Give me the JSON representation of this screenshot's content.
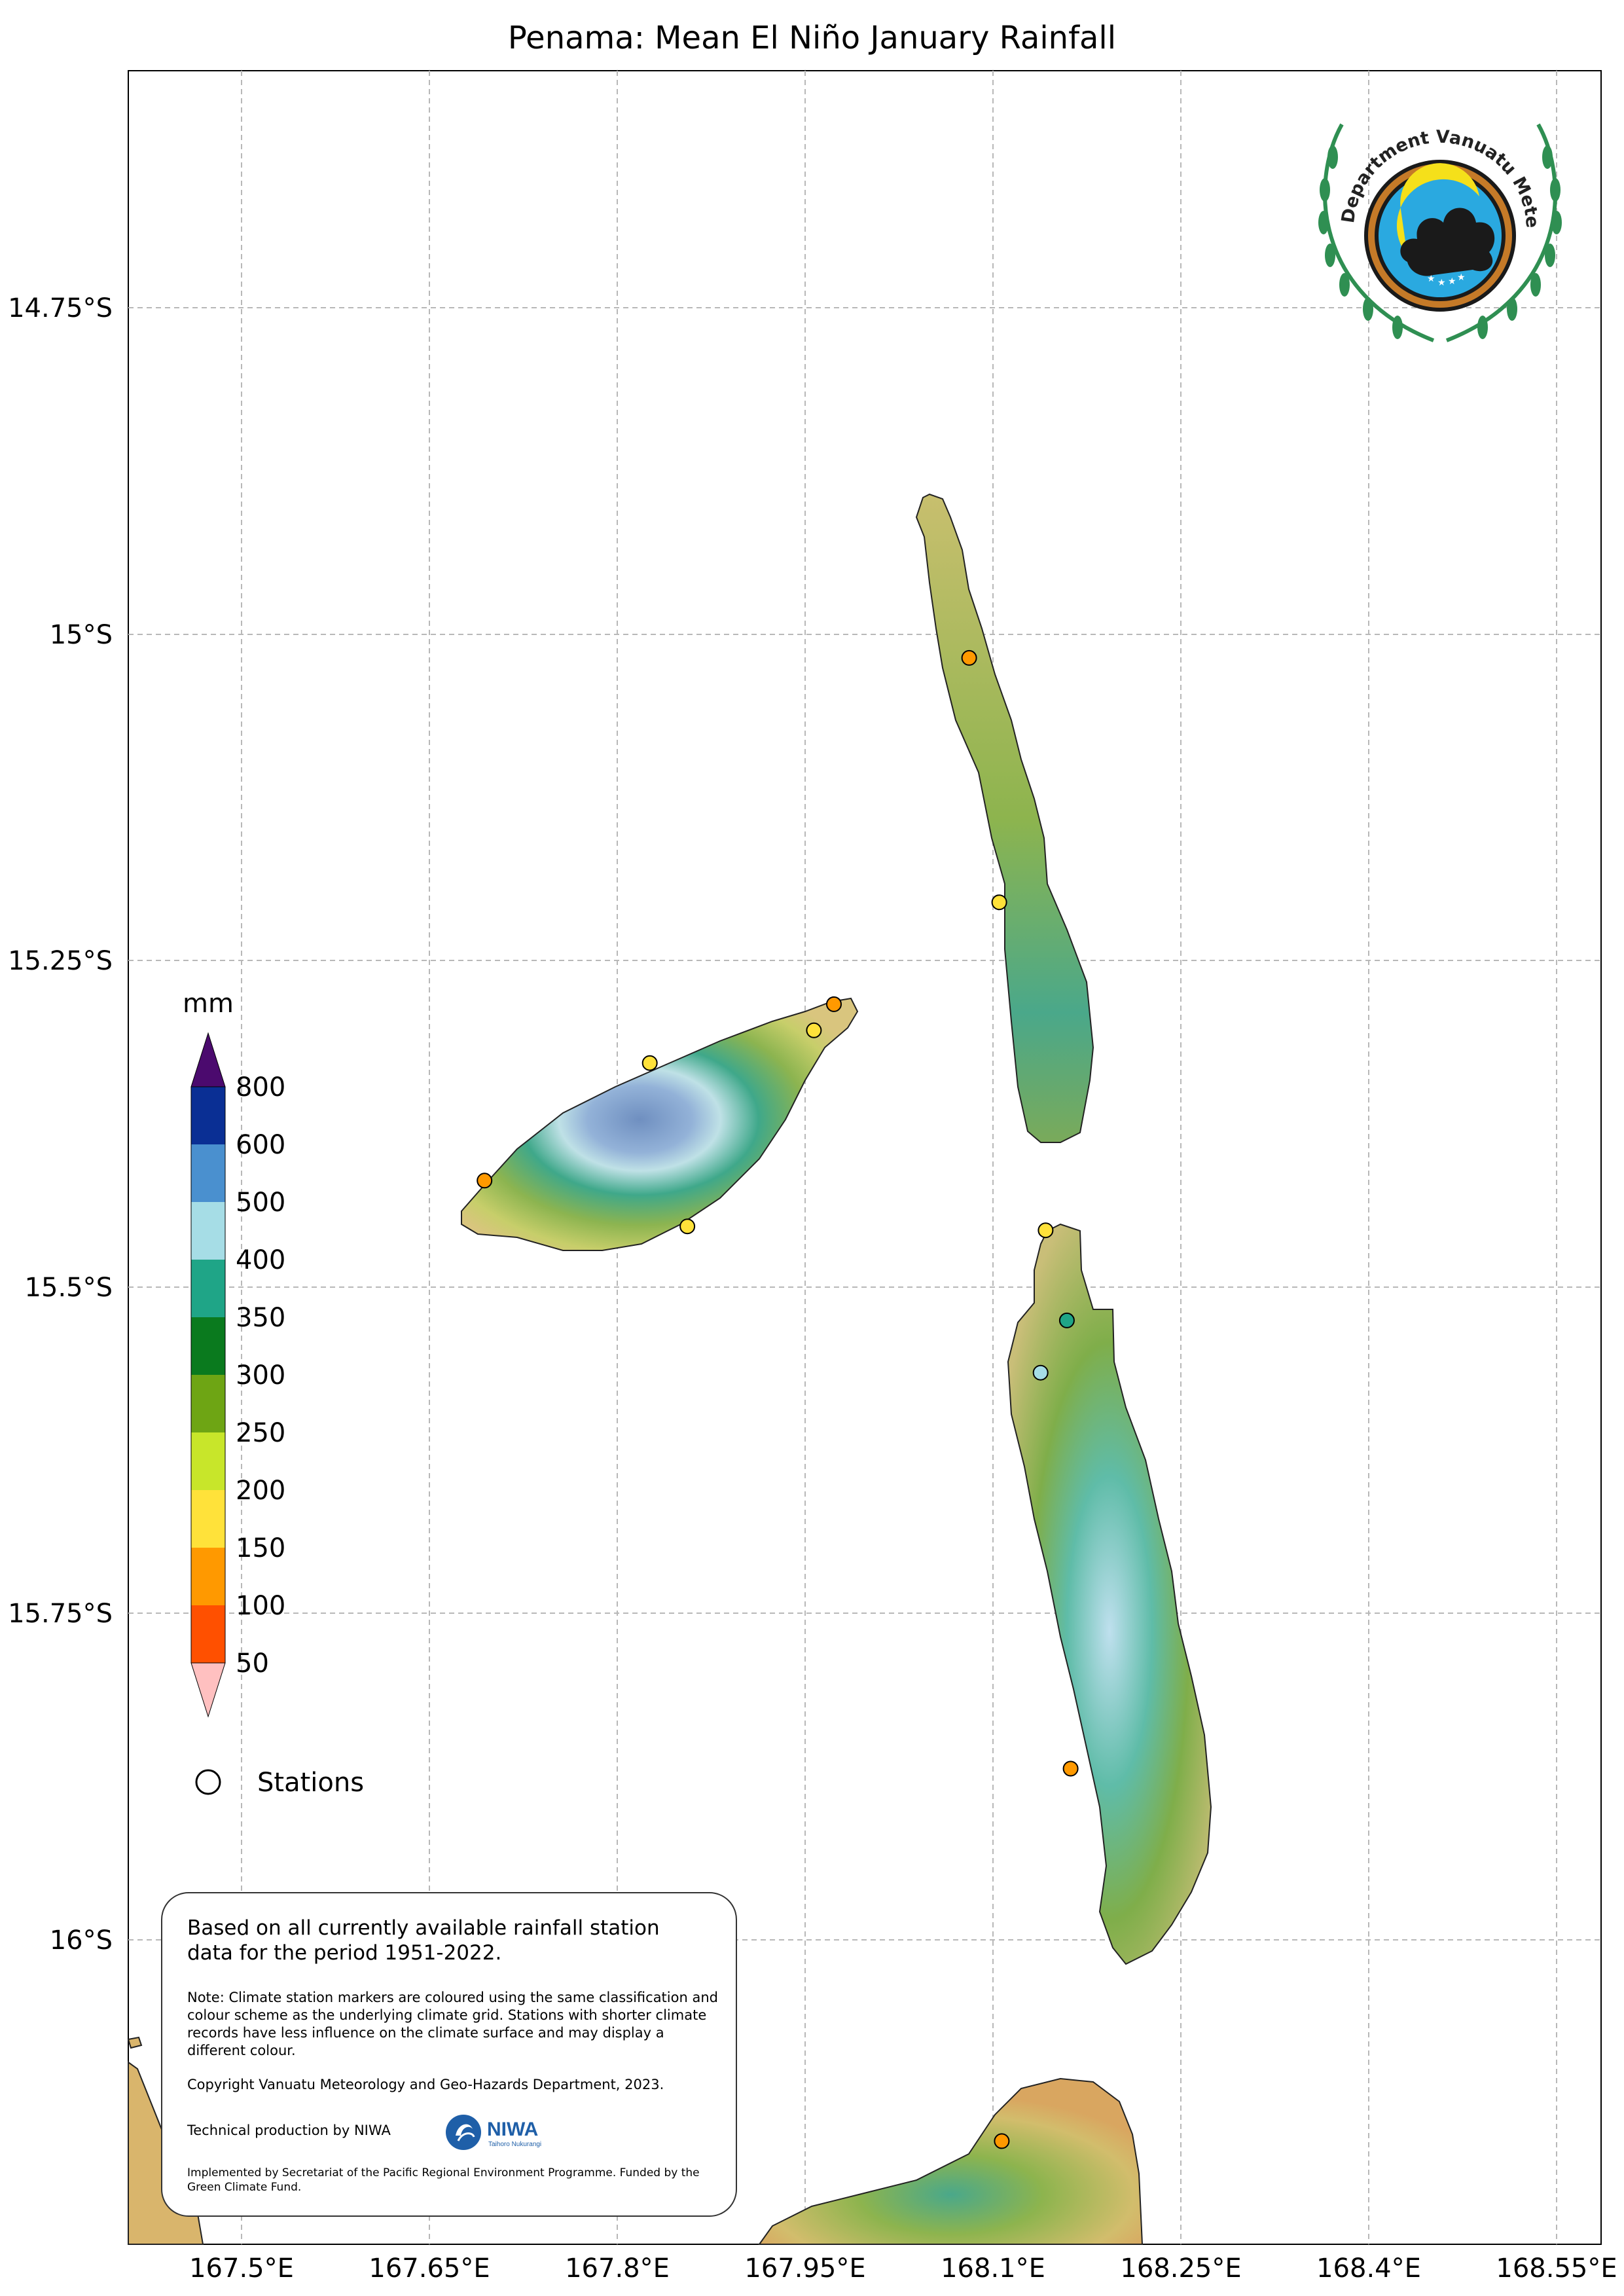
{
  "title": "Penama: Mean El Niño January Rainfall",
  "axes": {
    "latitude_ticks": [
      "14.75°S",
      "15°S",
      "15.25°S",
      "15.5°S",
      "15.75°S",
      "16°S"
    ],
    "longitude_ticks": [
      "167.5°E",
      "167.65°E",
      "167.8°E",
      "167.95°E",
      "168.1°E",
      "168.25°E",
      "168.4°E",
      "168.55°E"
    ]
  },
  "colorbar": {
    "unit": "mm",
    "levels": [
      "50",
      "100",
      "150",
      "200",
      "250",
      "300",
      "350",
      "400",
      "500",
      "600",
      "800"
    ],
    "colors": [
      "#ffc0c0",
      "#ff5000",
      "#ff9900",
      "#ffe23a",
      "#c8e62a",
      "#6ea514",
      "#0a7a1e",
      "#1fa587",
      "#a6dde6",
      "#4a90cf",
      "#0a2f94",
      "#4b0a6e"
    ]
  },
  "legend": {
    "stations_label": "Stations"
  },
  "note": {
    "main": "Based on all currently available rainfall station data for the period 1951-2022.",
    "small": "Note: Climate station markers are coloured using the same classification and colour scheme as the underlying climate grid. Stations with shorter climate records have less influence on the climate surface and may display a different colour.",
    "copyright": "Copyright Vanuatu Meteorology and Geo-Hazards Department, 2023.",
    "technical": "Technical production by NIWA",
    "implemented": "Implemented by Secretariat of the Pacific Regional Environment Programme. Funded by the Green Climate Fund."
  },
  "logos": {
    "department": "Department Vanuatu Meteorology and Geo-Hazards",
    "niwa": "NIWA",
    "niwa_sub": "Taihoro Nukurangi"
  },
  "stations": [
    {
      "lon": 168.081,
      "lat": 15.018,
      "color": "#ff9900"
    },
    {
      "lon": 168.105,
      "lat": 15.205,
      "color": "#ffe23a"
    },
    {
      "lon": 167.973,
      "lat": 15.283,
      "color": "#ff9900"
    },
    {
      "lon": 167.957,
      "lat": 15.303,
      "color": "#ffe23a"
    },
    {
      "lon": 167.826,
      "lat": 15.328,
      "color": "#ffe23a"
    },
    {
      "lon": 167.694,
      "lat": 15.418,
      "color": "#ff9900"
    },
    {
      "lon": 167.856,
      "lat": 15.453,
      "color": "#ffe23a"
    },
    {
      "lon": 168.142,
      "lat": 15.456,
      "color": "#ffe23a"
    },
    {
      "lon": 168.159,
      "lat": 15.525,
      "color": "#1fa587"
    },
    {
      "lon": 168.138,
      "lat": 15.565,
      "color": "#a6dde6"
    },
    {
      "lon": 168.162,
      "lat": 15.868,
      "color": "#ff9900"
    },
    {
      "lon": 168.107,
      "lat": 16.153,
      "color": "#ff9900"
    }
  ]
}
